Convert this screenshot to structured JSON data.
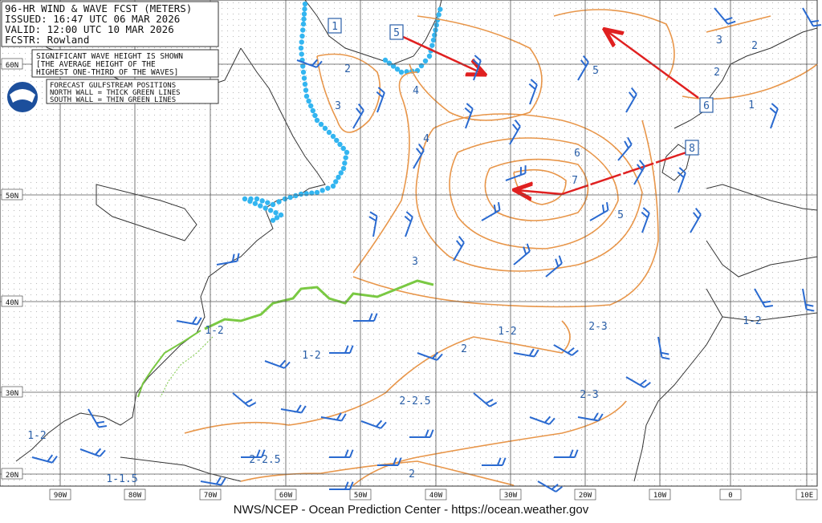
{
  "header": {
    "lines": [
      "96-HR WIND & WAVE FCST (METERS)",
      "ISSUED: 16:47 UTC 06 MAR 2026",
      "VALID:  12:00 UTC 10 MAR 2026",
      "FCSTR:  Rowland"
    ]
  },
  "legend_wave": {
    "lines": [
      "SIGNIFICANT WAVE HEIGHT IS SHOWN",
      "[THE AVERAGE HEIGHT OF THE",
      "HIGHEST ONE-THIRD OF THE WAVES]"
    ]
  },
  "legend_gulfstream": {
    "lines": [
      "FORECAST GULFSTREAM POSITIONS",
      "NORTH WALL = THICK GREEN LINES",
      "SOUTH WALL = THIN GREEN LINES"
    ]
  },
  "grid": {
    "latitudes": [
      "60N",
      "50N",
      "40N",
      "30N",
      "20N"
    ],
    "longitudes": [
      "90W",
      "80W",
      "70W",
      "60W",
      "50W",
      "40W",
      "30W",
      "20W",
      "10W",
      "0",
      "10E"
    ]
  },
  "wave_labels": [
    "2",
    "3",
    "4",
    "4",
    "5",
    "3",
    "2",
    "2",
    "1",
    "6",
    "7",
    "5",
    "3",
    "1-2",
    "1-2",
    "1-2",
    "2-3",
    "2",
    "1-2",
    "2-3",
    "2-2.5",
    "1-2",
    "2-2.5",
    "1-1.5",
    "2"
  ],
  "storm_boxes": [
    "1",
    "5",
    "6",
    "8"
  ],
  "footer": "NWS/NCEP - Ocean Prediction Center - https://ocean.weather.gov"
}
